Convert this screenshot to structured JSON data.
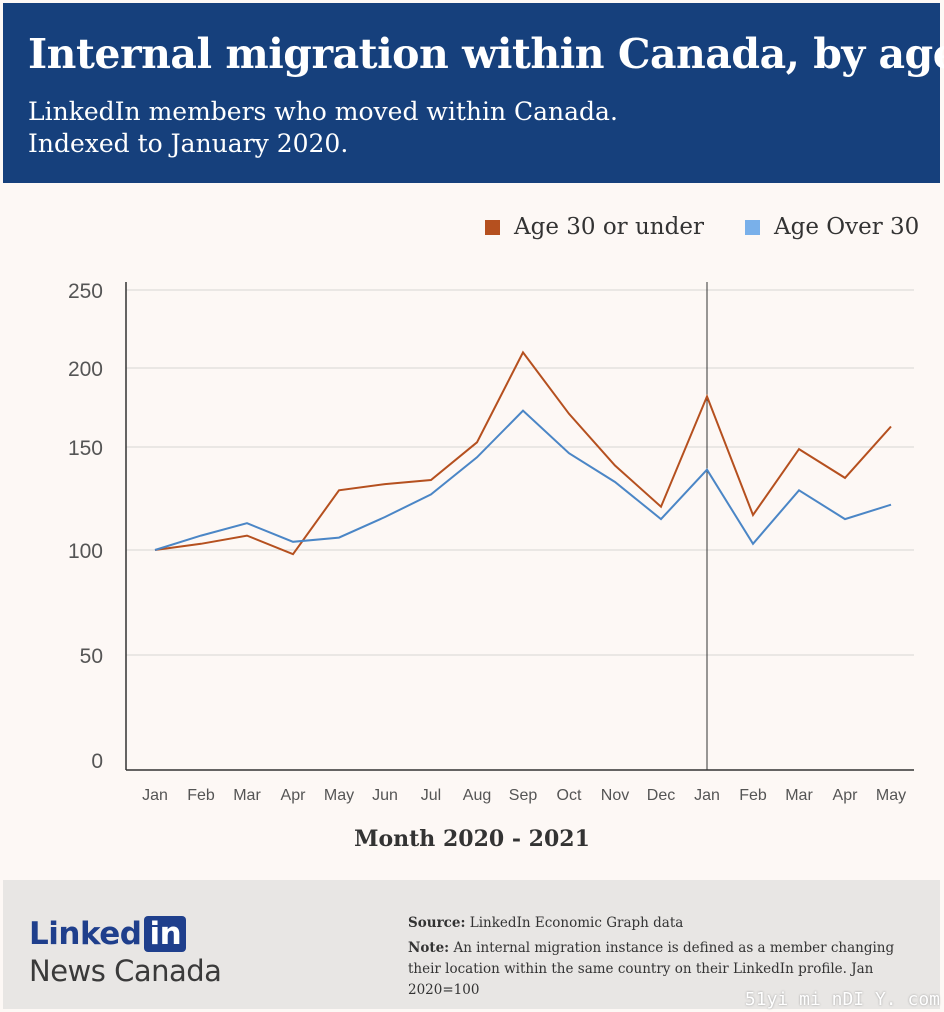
{
  "header": {
    "title": "Internal migration within Canada, by age",
    "subtitle_line1": "LinkedIn members who moved within Canada.",
    "subtitle_line2": "Indexed to January 2020."
  },
  "colors": {
    "header_bg": "#16407c",
    "series_under30": "#b5501f",
    "series_over30": "#4b86c6",
    "legend_over30": "#79b0ea"
  },
  "chart_data": {
    "type": "line",
    "xlabel": "Month 2020 - 2021",
    "ylabel": "",
    "categories": [
      "Jan",
      "Feb",
      "Mar",
      "Apr",
      "May",
      "Jun",
      "Jul",
      "Aug",
      "Sep",
      "Oct",
      "Nov",
      "Dec",
      "Jan",
      "Feb",
      "Mar",
      "Apr",
      "May"
    ],
    "y_ticks": [
      0,
      50,
      100,
      150,
      200,
      250
    ],
    "ylim": [
      0,
      250
    ],
    "series": [
      {
        "name": "Age 30 or under",
        "values": [
          100,
          103,
          107,
          98,
          129,
          132,
          134,
          153,
          210,
          171,
          141,
          121,
          182,
          117,
          149,
          135,
          163
        ]
      },
      {
        "name": "Age Over 30",
        "values": [
          100,
          107,
          113,
          104,
          106,
          116,
          127,
          145,
          173,
          147,
          133,
          115,
          139,
          103,
          129,
          115,
          122
        ]
      }
    ],
    "legend_position": "top-right",
    "grid": "horizontal",
    "annotations": [
      "vertical line at second Jan (start of 2021)"
    ]
  },
  "footer": {
    "brand_word": "Linked",
    "brand_box": "in",
    "brand_sub": "News Canada",
    "source_label": "Source:",
    "source_text": " LinkedIn Economic Graph data",
    "note_label": "Note:",
    "note_text": " An internal migration instance is defined as a member changing their location within the same country on their LinkedIn profile. Jan 2020=100"
  },
  "watermark": "51yi mi nDI Y. com"
}
